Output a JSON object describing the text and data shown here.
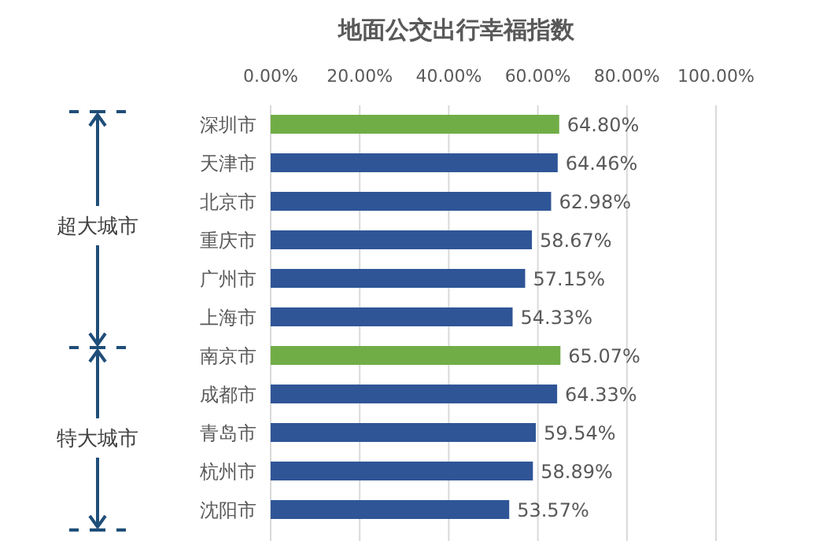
{
  "chart_data": {
    "type": "bar",
    "orientation": "horizontal",
    "title": "地面公交出行幸福指数",
    "categories": [
      "深圳市",
      "天津市",
      "北京市",
      "重庆市",
      "广州市",
      "上海市",
      "南京市",
      "成都市",
      "青岛市",
      "杭州市",
      "沈阳市"
    ],
    "values": [
      64.8,
      64.46,
      62.98,
      58.67,
      57.15,
      54.33,
      65.07,
      64.33,
      59.54,
      58.89,
      53.57
    ],
    "value_labels": [
      "64.80%",
      "64.46%",
      "62.98%",
      "58.67%",
      "57.15%",
      "54.33%",
      "65.07%",
      "64.33%",
      "59.54%",
      "58.89%",
      "53.57%"
    ],
    "colors": [
      "#70ad47",
      "#2f5597",
      "#2f5597",
      "#2f5597",
      "#2f5597",
      "#2f5597",
      "#70ad47",
      "#2f5597",
      "#2f5597",
      "#2f5597",
      "#2f5597"
    ],
    "xlim": [
      0,
      100
    ],
    "xticks": [
      {
        "value": 0,
        "label": "0.00%"
      },
      {
        "value": 20,
        "label": "20.00%"
      },
      {
        "value": 40,
        "label": "40.00%"
      },
      {
        "value": 60,
        "label": "60.00%"
      },
      {
        "value": 80,
        "label": "80.00%"
      },
      {
        "value": 100,
        "label": "100.00%"
      }
    ],
    "grid": "x",
    "annotations": [
      "超大城市",
      "特大城市"
    ]
  }
}
